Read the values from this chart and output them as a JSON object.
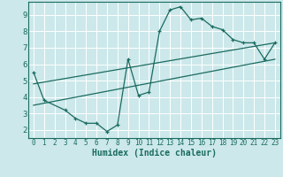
{
  "xlabel": "Humidex (Indice chaleur)",
  "bg_color": "#cce8ea",
  "grid_color": "#b0d8da",
  "line_color": "#1a6b60",
  "xlim": [
    -0.5,
    23.5
  ],
  "ylim": [
    1.5,
    9.8
  ],
  "xticks": [
    0,
    1,
    2,
    3,
    4,
    5,
    6,
    7,
    8,
    9,
    10,
    11,
    12,
    13,
    14,
    15,
    16,
    17,
    18,
    19,
    20,
    21,
    22,
    23
  ],
  "yticks": [
    2,
    3,
    4,
    5,
    6,
    7,
    8,
    9
  ],
  "curve1_x": [
    0,
    1,
    3,
    4,
    5,
    6,
    7,
    8,
    9,
    10,
    11,
    12,
    13,
    14,
    15,
    16,
    17,
    18,
    19,
    20,
    21,
    22,
    23
  ],
  "curve1_y": [
    5.5,
    3.8,
    3.2,
    2.7,
    2.4,
    2.4,
    1.9,
    2.3,
    6.3,
    4.1,
    4.3,
    8.0,
    9.3,
    9.5,
    8.7,
    8.8,
    8.3,
    8.1,
    7.5,
    7.3,
    7.3,
    6.3,
    7.3
  ],
  "curve2_x": [
    0,
    23
  ],
  "curve2_y": [
    3.5,
    6.3
  ],
  "curve3_x": [
    0,
    23
  ],
  "curve3_y": [
    4.8,
    7.3
  ],
  "marker_x1": [
    0,
    1,
    3,
    4,
    5,
    6,
    7,
    8,
    9,
    10,
    11,
    12,
    13,
    14,
    15,
    16,
    17,
    18,
    19,
    20,
    21,
    22,
    23
  ],
  "marker_y1": [
    5.5,
    3.8,
    3.2,
    2.7,
    2.4,
    2.4,
    1.9,
    2.3,
    6.3,
    4.1,
    4.3,
    8.0,
    9.3,
    9.5,
    8.7,
    8.8,
    8.3,
    8.1,
    7.5,
    7.3,
    7.3,
    6.3,
    7.3
  ]
}
